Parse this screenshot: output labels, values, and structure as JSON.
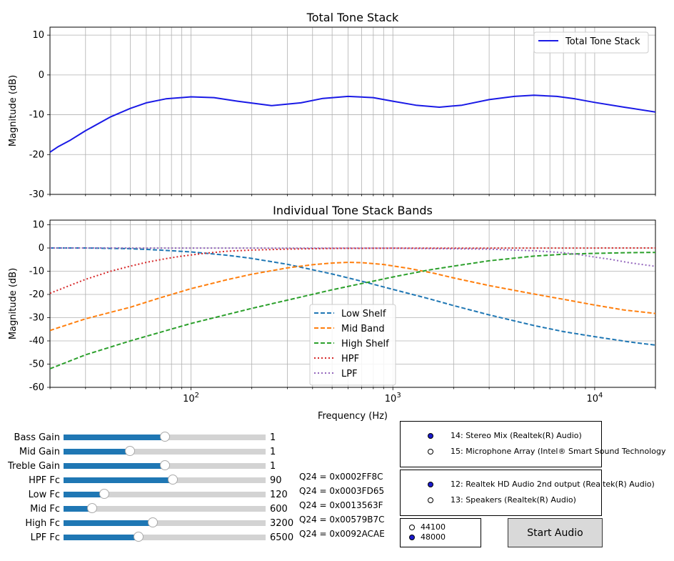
{
  "chart_data": [
    {
      "type": "line",
      "title": "Total Tone Stack",
      "xlabel": "",
      "ylabel": "Magnitude (dB)",
      "xscale": "log",
      "xlim": [
        20,
        20000
      ],
      "ylim": [
        -30,
        12
      ],
      "yticks": [
        10,
        0,
        -10,
        -20,
        -30
      ],
      "xticks": [
        100,
        1000,
        10000
      ],
      "xtick_labels": [
        "10^2",
        "10^3",
        "10^4"
      ],
      "grid": true,
      "legend_position": "top-right",
      "series": [
        {
          "name": "Total Tone Stack",
          "color": "#1a1ae6",
          "style": "solid",
          "x": [
            20,
            22,
            25,
            30,
            40,
            50,
            60,
            75,
            100,
            130,
            170,
            250,
            350,
            450,
            600,
            800,
            1000,
            1300,
            1700,
            2200,
            3000,
            4000,
            5000,
            6500,
            8000,
            10000,
            14000,
            20000
          ],
          "y": [
            -19.4,
            -18.0,
            -16.5,
            -14.0,
            -10.5,
            -8.4,
            -7.0,
            -6.0,
            -5.5,
            -5.7,
            -6.6,
            -7.7,
            -7.0,
            -5.9,
            -5.4,
            -5.7,
            -6.6,
            -7.6,
            -8.1,
            -7.6,
            -6.2,
            -5.4,
            -5.1,
            -5.4,
            -6.0,
            -6.9,
            -8.1,
            -9.3
          ]
        }
      ]
    },
    {
      "type": "line",
      "title": "Individual Tone Stack Bands",
      "xlabel": "Frequency (Hz)",
      "ylabel": "Magnitude (dB)",
      "xscale": "log",
      "xlim": [
        20,
        20000
      ],
      "ylim": [
        -60,
        12
      ],
      "yticks": [
        10,
        0,
        -10,
        -20,
        -30,
        -40,
        -50,
        -60
      ],
      "xticks": [
        100,
        1000,
        10000
      ],
      "xtick_labels": [
        "10^2",
        "10^3",
        "10^4"
      ],
      "grid": true,
      "legend_position": "lower-center",
      "series": [
        {
          "name": "Low Shelf",
          "color": "#1f77b4",
          "style": "dashed",
          "x": [
            20,
            30,
            50,
            70,
            100,
            150,
            200,
            300,
            500,
            700,
            1000,
            1500,
            2000,
            3000,
            5000,
            7000,
            10000,
            15000,
            20000
          ],
          "y": [
            0,
            0,
            -0.3,
            -0.9,
            -1.7,
            -3.1,
            -4.5,
            -7.0,
            -11.2,
            -14.3,
            -17.8,
            -21.8,
            -24.8,
            -28.8,
            -33.4,
            -36.0,
            -38.2,
            -40.5,
            -41.8
          ]
        },
        {
          "name": "Mid Band",
          "color": "#ff7f0e",
          "style": "dashed",
          "x": [
            20,
            30,
            50,
            70,
            100,
            150,
            200,
            300,
            400,
            500,
            600,
            700,
            900,
            1200,
            1600,
            2000,
            3000,
            5000,
            7000,
            10000,
            14000,
            20000
          ],
          "y": [
            -35.5,
            -30.5,
            -25.5,
            -21.5,
            -17.5,
            -13.7,
            -11.3,
            -8.6,
            -7.2,
            -6.5,
            -6.2,
            -6.3,
            -7.1,
            -8.8,
            -10.9,
            -12.9,
            -16.2,
            -19.8,
            -22.1,
            -24.6,
            -26.7,
            -28.2
          ]
        },
        {
          "name": "High Shelf",
          "color": "#2ca02c",
          "style": "dashed",
          "x": [
            20,
            30,
            50,
            100,
            200,
            500,
            1000,
            1500,
            2000,
            3000,
            5000,
            7000,
            10000,
            15000,
            20000
          ],
          "y": [
            -52,
            -46,
            -40,
            -32.5,
            -26,
            -18,
            -12.5,
            -9.5,
            -7.8,
            -5.5,
            -3.5,
            -2.7,
            -2.3,
            -2.0,
            -1.9
          ]
        },
        {
          "name": "HPF",
          "color": "#d62728",
          "style": "dotted",
          "x": [
            20,
            25,
            30,
            40,
            50,
            60,
            75,
            90,
            120,
            150,
            200,
            300,
            500,
            1000,
            20000
          ],
          "y": [
            -19.5,
            -16.2,
            -13.5,
            -10.0,
            -7.8,
            -6.2,
            -4.6,
            -3.5,
            -2.2,
            -1.4,
            -0.9,
            -0.5,
            -0.2,
            -0.1,
            0
          ]
        },
        {
          "name": "LPF",
          "color": "#9467bd",
          "style": "dotted",
          "x": [
            20,
            1000,
            3000,
            5000,
            6500,
            8000,
            10000,
            12000,
            15000,
            20000
          ],
          "y": [
            0,
            -0.1,
            -0.5,
            -1.2,
            -1.8,
            -2.6,
            -3.9,
            -4.9,
            -6.4,
            -7.9
          ]
        }
      ]
    }
  ],
  "controls": [
    {
      "label": "Bass Gain",
      "value": "1",
      "fraction": 0.5,
      "q24": ""
    },
    {
      "label": "Mid Gain",
      "value": "1",
      "fraction": 0.33,
      "q24": ""
    },
    {
      "label": "Treble Gain",
      "value": "1",
      "fraction": 0.5,
      "q24": ""
    },
    {
      "label": "HPF Fc",
      "value": "90",
      "fraction": 0.54,
      "q24": "Q24 = 0x0002FF8C"
    },
    {
      "label": "Low Fc",
      "value": "120",
      "fraction": 0.2,
      "q24": "Q24 = 0x0003FD65"
    },
    {
      "label": "Mid Fc",
      "value": "600",
      "fraction": 0.14,
      "q24": "Q24 = 0x0013563F"
    },
    {
      "label": "High Fc",
      "value": "3200",
      "fraction": 0.44,
      "q24": "Q24 = 0x00579B7C"
    },
    {
      "label": "LPF Fc",
      "value": "6500",
      "fraction": 0.37,
      "q24": "Q24 = 0x0092ACAE"
    }
  ],
  "input_devices": [
    {
      "label": "14: Stereo Mix (Realtek(R) Audio)",
      "selected": true
    },
    {
      "label": "15: Microphone Array (Intel® Smart Sound Technology",
      "selected": false
    }
  ],
  "output_devices": [
    {
      "label": "12: Realtek HD Audio 2nd output (Realtek(R) Audio)",
      "selected": true
    },
    {
      "label": "13: Speakers (Realtek(R) Audio)",
      "selected": false
    }
  ],
  "sample_rates": [
    {
      "label": "44100",
      "selected": false
    },
    {
      "label": "48000",
      "selected": true
    }
  ],
  "start_button_label": "Start Audio"
}
